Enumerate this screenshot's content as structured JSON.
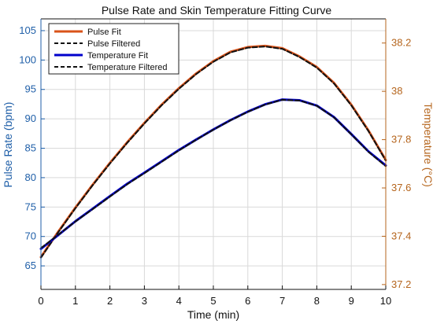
{
  "chart_data": {
    "type": "line",
    "title": "Pulse Rate and Skin Temperature Fitting Curve",
    "xlabel": "Time (min)",
    "xlim": [
      0,
      10
    ],
    "x_ticks": [
      0,
      1,
      2,
      3,
      4,
      5,
      6,
      7,
      8,
      9,
      10
    ],
    "y_left": {
      "label": "Pulse Rate (bpm)",
      "lim": [
        61,
        107
      ],
      "ticks": [
        65,
        70,
        75,
        80,
        85,
        90,
        95,
        100,
        105
      ],
      "color": "#1f5fa8"
    },
    "y_right": {
      "label": "Temperature (°C)",
      "lim": [
        37.18,
        38.3
      ],
      "ticks": [
        37.2,
        37.4,
        37.6,
        37.8,
        38,
        38.2
      ],
      "color": "#b5651d"
    },
    "grid": true,
    "legend_position": "top-left",
    "legend": [
      "Pulse Fit",
      "Pulse Filtered",
      "Temperature Fit",
      "Temperature Filtered"
    ],
    "x": [
      0,
      0.5,
      1,
      1.5,
      2,
      2.5,
      3,
      3.5,
      4,
      4.5,
      5,
      5.5,
      6,
      6.5,
      7,
      7.5,
      8,
      8.5,
      9,
      9.5,
      10
    ],
    "series": [
      {
        "name": "Pulse Fit",
        "axis": "left",
        "style": "solid",
        "color": "#d95319",
        "values": [
          66.5,
          70.8,
          74.9,
          78.8,
          82.5,
          86.0,
          89.3,
          92.4,
          95.2,
          97.7,
          99.8,
          101.4,
          102.2,
          102.4,
          102.0,
          100.6,
          98.8,
          96.1,
          92.4,
          88.0,
          83.0
        ]
      },
      {
        "name": "Pulse Filtered",
        "axis": "left",
        "style": "dashed",
        "color": "#111111",
        "values": [
          66.4,
          70.7,
          74.8,
          78.7,
          82.4,
          85.9,
          89.2,
          92.3,
          95.1,
          97.6,
          99.7,
          101.3,
          102.1,
          102.3,
          101.9,
          100.5,
          98.7,
          96.0,
          92.3,
          87.9,
          82.9
        ]
      },
      {
        "name": "Temperature Fit",
        "axis": "right",
        "style": "solid",
        "color": "#0000cc",
        "values": [
          37.348,
          37.405,
          37.462,
          37.514,
          37.566,
          37.617,
          37.663,
          37.71,
          37.757,
          37.8,
          37.842,
          37.881,
          37.916,
          37.946,
          37.966,
          37.963,
          37.941,
          37.893,
          37.823,
          37.751,
          37.693
        ]
      },
      {
        "name": "Temperature Filtered",
        "axis": "right",
        "style": "dashed",
        "color": "#111111",
        "values": [
          37.351,
          37.406,
          37.461,
          37.512,
          37.564,
          37.615,
          37.661,
          37.708,
          37.755,
          37.799,
          37.841,
          37.88,
          37.915,
          37.945,
          37.965,
          37.962,
          37.94,
          37.892,
          37.822,
          37.749,
          37.69
        ]
      }
    ]
  }
}
